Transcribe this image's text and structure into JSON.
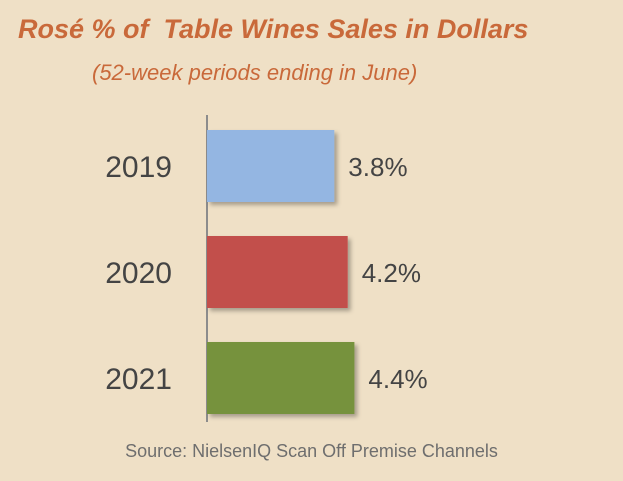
{
  "title": "Rosé % of  Table Wines Sales in Dollars",
  "subtitle": "(52-week periods ending in June)",
  "source": "Source: NielsenIQ Scan Off Premise Channels",
  "colors": {
    "background": "#efe0c6",
    "title": "#c9693a",
    "bars": [
      "#94b6e2",
      "#c2504c",
      "#76923c"
    ]
  },
  "chart_data": {
    "type": "bar",
    "orientation": "horizontal",
    "title": "Rosé % of  Table Wines Sales in Dollars",
    "subtitle": "(52-week periods ending in June)",
    "categories": [
      "2019",
      "2020",
      "2021"
    ],
    "values": [
      3.8,
      4.2,
      4.4
    ],
    "value_labels": [
      "3.8%",
      "4.2%",
      "4.4%"
    ],
    "xlabel": "",
    "ylabel": "",
    "grid": false,
    "legend": "none"
  }
}
